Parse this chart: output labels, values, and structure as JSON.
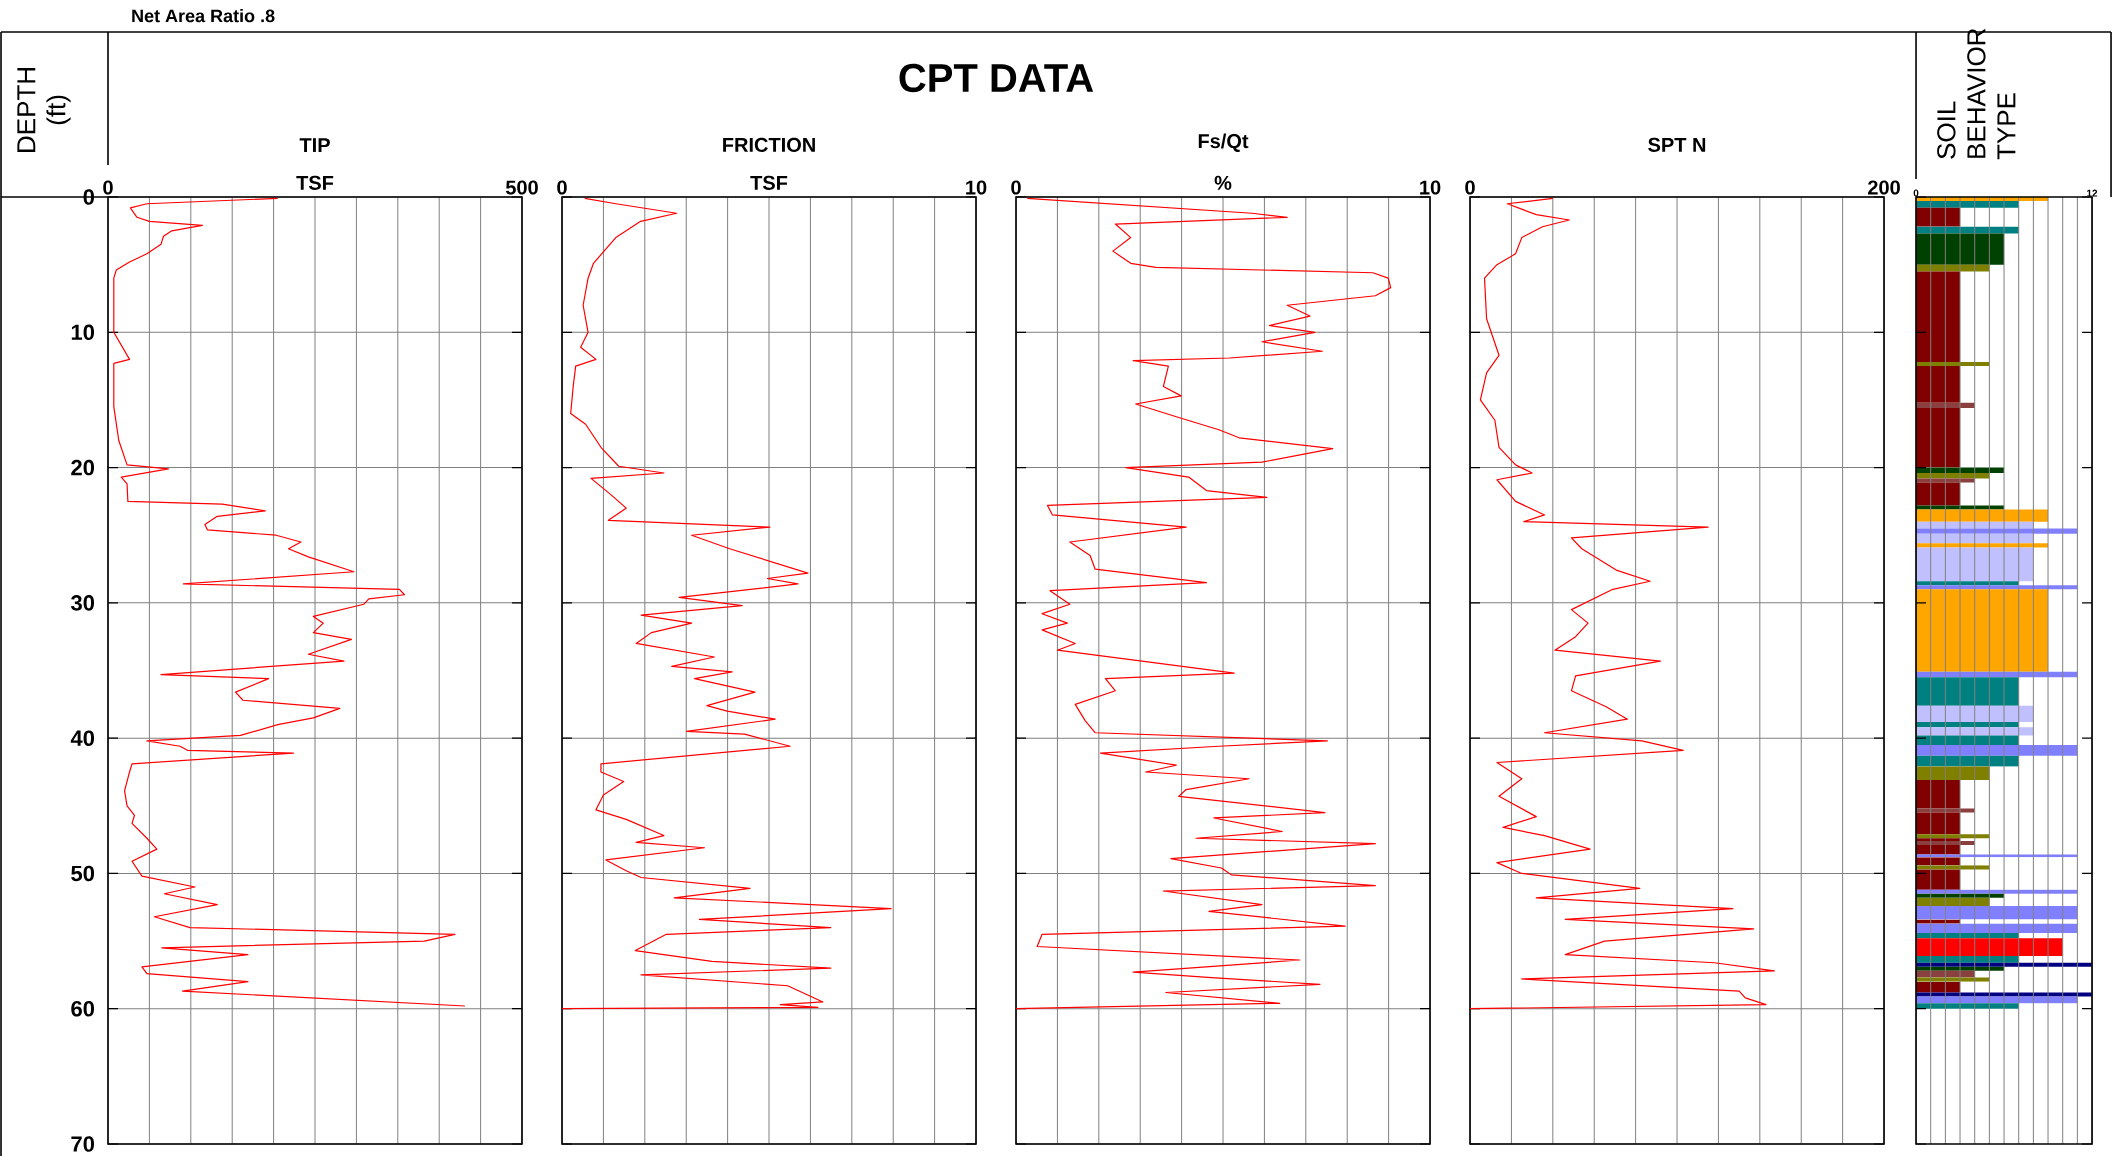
{
  "chart_data": [
    {
      "type": "line",
      "title": "TIP",
      "xlabel": "TSF",
      "ylabel": "DEPTH (ft)",
      "annotations": [
        "CPT DATA",
        "Net Area Ratio .8"
      ],
      "xlim": [
        0,
        500
      ],
      "xticks": [
        0,
        {
          "value": 50,
          "label": null
        },
        {
          "value": 100,
          "label": null
        },
        {
          "value": 150,
          "label": null
        },
        {
          "value": 200,
          "label": null
        },
        {
          "value": 250,
          "label": null
        },
        {
          "value": 300,
          "label": null
        },
        {
          "value": 350,
          "label": null
        },
        {
          "value": 400,
          "label": null
        },
        {
          "value": 450,
          "label": null
        },
        500
      ],
      "ylim": [
        70,
        0
      ],
      "yticks": [
        0,
        10,
        20,
        30,
        40,
        50,
        60,
        70
      ],
      "grid": true,
      "series": [
        {
          "color": "#ff0000",
          "x": [
            205,
            47,
            27,
            35,
            50,
            114,
            77,
            67,
            64,
            47,
            26,
            10,
            7,
            7,
            26,
            7,
            7,
            13,
            23,
            73,
            16,
            23,
            24,
            138,
            190,
            132,
            117,
            120,
            203,
            233,
            218,
            242,
            297,
            91,
            352,
            358,
            315,
            309,
            248,
            260,
            248,
            294,
            242,
            285,
            64,
            194,
            154,
            163,
            280,
            248,
            205,
            160,
            47,
            87,
            96,
            224,
            29,
            26,
            20,
            23,
            32,
            29,
            47,
            59,
            29,
            41,
            105,
            68,
            132,
            56,
            99,
            419,
            382,
            65,
            169,
            41,
            47,
            169,
            90,
            431
          ],
          "values": [
            0.1,
            0.5,
            0.8,
            1.5,
            1.8,
            2.1,
            2.5,
            2.9,
            3.5,
            4.2,
            4.8,
            5.4,
            6,
            10,
            12,
            12.3,
            15.5,
            18,
            19.8,
            20.1,
            20.7,
            21.2,
            22.5,
            22.7,
            23.2,
            23.6,
            24.2,
            24.6,
            25.0,
            25.5,
            26.0,
            26.6,
            27.7,
            28.6,
            29.0,
            29.4,
            29.7,
            30.1,
            31.0,
            31.5,
            32.2,
            32.7,
            33.8,
            34.3,
            35.3,
            35.6,
            36.6,
            37.2,
            37.8,
            38.5,
            39.0,
            39.8,
            40.2,
            40.6,
            40.9,
            41.1,
            41.9,
            42.5,
            43.9,
            45.0,
            45.7,
            46.3,
            47.4,
            48.2,
            49.1,
            50.2,
            51.0,
            51.5,
            52.3,
            53.2,
            54.0,
            54.5,
            55.0,
            55.5,
            56.0,
            56.9,
            57.4,
            58.0,
            58.7,
            59.8
          ]
        }
      ]
    },
    {
      "type": "line",
      "title": "FRICTION",
      "xlabel": "TSF",
      "xlim": [
        0,
        10
      ],
      "xticks": [
        0,
        {
          "value": 1,
          "label": null
        },
        {
          "value": 2,
          "label": null
        },
        {
          "value": 3,
          "label": null
        },
        {
          "value": 4,
          "label": null
        },
        {
          "value": 5,
          "label": null
        },
        {
          "value": 6,
          "label": null
        },
        {
          "value": 7,
          "label": null
        },
        {
          "value": 8,
          "label": null
        },
        {
          "value": 9,
          "label": null
        },
        10
      ],
      "ylim": [
        70,
        0
      ],
      "yticks": [
        0,
        10,
        20,
        30,
        40,
        50,
        60,
        70
      ],
      "grid": true,
      "tick_labels": "x",
      "series": [
        {
          "color": "#ff0000",
          "x": [
            0.55,
            1.3,
            2.77,
            1.9,
            1.3,
            0.76,
            0.63,
            0.51,
            0.63,
            0.45,
            0.82,
            0.33,
            0.27,
            0.21,
            0.57,
            0.94,
            1.37,
            2.46,
            0.7,
            1.18,
            1.55,
            1.12,
            5.02,
            3.13,
            4.05,
            5.94,
            4.96,
            5.7,
            2.83,
            4.35,
            1.91,
            3.13,
            2.16,
            1.79,
            3.68,
            2.65,
            4.11,
            3.2,
            4.66,
            3.5,
            3.99,
            5.15,
            3.01,
            4.41,
            5.51,
            0.94,
            0.94,
            1.49,
            1.0,
            0.82,
            1.55,
            2.46,
            1.79,
            3.44,
            1.06,
            1.55,
            1.91,
            4.54,
            2.71,
            7.95,
            3.32,
            6.49,
            2.52,
            1.77,
            3.62,
            6.49,
            1.91,
            5.45,
            6.3,
            5.27,
            6.18,
            0.0
          ],
          "values": [
            0.1,
            0.5,
            1.2,
            1.8,
            3.0,
            4.9,
            6.0,
            8.0,
            10.0,
            11.1,
            12.0,
            12.5,
            14.0,
            16.0,
            16.8,
            18.5,
            19.9,
            20.4,
            20.8,
            22.0,
            23.0,
            23.9,
            24.4,
            25.0,
            26.0,
            27.8,
            28.2,
            28.6,
            29.6,
            30.2,
            30.9,
            31.5,
            32.2,
            33.0,
            34.0,
            34.7,
            35.1,
            35.6,
            36.6,
            37.6,
            38.0,
            38.6,
            39.5,
            39.7,
            40.6,
            41.9,
            42.5,
            43.2,
            44.2,
            45.3,
            46.0,
            47.2,
            47.7,
            48.1,
            49.0,
            49.8,
            50.3,
            51.1,
            51.8,
            52.6,
            53.4,
            54.0,
            54.5,
            55.7,
            56.5,
            57.0,
            57.5,
            58.3,
            59.5,
            59.7,
            59.9,
            60.0
          ]
        }
      ]
    },
    {
      "type": "line",
      "title": "Fs/Qt",
      "xlabel": "%",
      "xlim": [
        0,
        10
      ],
      "xticks": [
        0,
        {
          "value": 1,
          "label": null
        },
        {
          "value": 2,
          "label": null
        },
        {
          "value": 3,
          "label": null
        },
        {
          "value": 4,
          "label": null
        },
        {
          "value": 5,
          "label": null
        },
        {
          "value": 6,
          "label": null
        },
        {
          "value": 7,
          "label": null
        },
        {
          "value": 8,
          "label": null
        },
        {
          "value": 9,
          "label": null
        },
        10
      ],
      "ylim": [
        70,
        0
      ],
      "yticks": [
        0,
        10,
        20,
        30,
        40,
        50,
        60,
        70
      ],
      "grid": true,
      "tick_labels": "x",
      "series": [
        {
          "color": "#ff0000",
          "x": [
            0.27,
            5.7,
            6.55,
            2.4,
            2.77,
            2.34,
            2.77,
            3.38,
            8.62,
            8.99,
            9.05,
            8.68,
            6.55,
            7.1,
            6.12,
            7.22,
            5.94,
            7.4,
            5.15,
            2.83,
            3.68,
            3.56,
            3.99,
            2.89,
            3.93,
            4.9,
            5.39,
            7.65,
            5.94,
            2.65,
            4.17,
            4.6,
            6.06,
            0.76,
            0.88,
            4.11,
            1.3,
            1.79,
            1.91,
            4.6,
            0.82,
            1.3,
            0.63,
            1.24,
            0.63,
            1.43,
            1.0,
            5.27,
            2.16,
            2.4,
            1.43,
            1.67,
            1.91,
            7.52,
            4.9,
            2.04,
            3.87,
            3.13,
            5.63,
            4.11,
            3.93,
            7.46,
            4.78,
            6.43,
            4.35,
            8.68,
            3.74,
            4.96,
            5.2,
            8.68,
            3.56,
            5.94,
            4.66,
            7.95,
            0.63,
            0.51,
            6.85,
            2.83,
            4.72,
            7.34,
            3.62,
            6.37,
            0.0
          ],
          "values": [
            0.1,
            1.2,
            1.5,
            2.0,
            3.0,
            4.0,
            4.9,
            5.2,
            5.6,
            6.0,
            6.7,
            7.3,
            8.0,
            8.8,
            9.5,
            10.0,
            10.7,
            11.4,
            11.9,
            12.1,
            12.5,
            14.0,
            14.7,
            15.3,
            16.3,
            17.2,
            17.8,
            18.6,
            19.6,
            20.0,
            20.7,
            21.7,
            22.2,
            22.8,
            23.5,
            24.4,
            25.5,
            26.5,
            27.5,
            28.5,
            29.1,
            30.1,
            30.8,
            31.5,
            32.0,
            33.0,
            33.5,
            35.2,
            35.6,
            36.5,
            37.5,
            38.7,
            39.6,
            40.2,
            40.6,
            41.1,
            42.0,
            42.5,
            43.0,
            43.8,
            44.3,
            45.5,
            45.9,
            46.9,
            47.4,
            47.8,
            48.9,
            49.6,
            50.1,
            50.9,
            51.3,
            52.3,
            52.8,
            53.9,
            54.5,
            55.4,
            56.4,
            57.3,
            57.7,
            58.2,
            58.8,
            59.6,
            60.0
          ]
        }
      ]
    },
    {
      "type": "line",
      "title": "SPT N",
      "xlim": [
        0,
        200
      ],
      "xticks": [
        0,
        {
          "value": 20,
          "label": null
        },
        {
          "value": 40,
          "label": null
        },
        {
          "value": 60,
          "label": null
        },
        {
          "value": 80,
          "label": null
        },
        {
          "value": 100,
          "label": null
        },
        {
          "value": 120,
          "label": null
        },
        {
          "value": 140,
          "label": null
        },
        {
          "value": 160,
          "label": null
        },
        {
          "value": 180,
          "label": null
        },
        200
      ],
      "ylim": [
        70,
        0
      ],
      "yticks": [
        0,
        10,
        20,
        30,
        40,
        50,
        60,
        70
      ],
      "grid": true,
      "tick_labels": "x",
      "series": [
        {
          "color": "#ff0000",
          "x": [
            40,
            18,
            32,
            48,
            35,
            25,
            22,
            13,
            7,
            8,
            14,
            8,
            5,
            12,
            14,
            22,
            30,
            13,
            22,
            36,
            26,
            115,
            49,
            54,
            71,
            87,
            69,
            49,
            57,
            51,
            41,
            92,
            51,
            49,
            66,
            76,
            36,
            83,
            103,
            13,
            25,
            14,
            32,
            16,
            36,
            58,
            13,
            25,
            82,
            32,
            127,
            46,
            137,
            65,
            46,
            118,
            147,
            25,
            130,
            133,
            143,
            0
          ],
          "values": [
            0.1,
            0.5,
            1.3,
            1.7,
            2.2,
            3.0,
            4.2,
            5.0,
            6.0,
            9.0,
            11.7,
            13.0,
            15.0,
            16.5,
            18.5,
            19.8,
            20.4,
            20.9,
            22.5,
            23.5,
            24.0,
            24.4,
            25.2,
            26.0,
            27.6,
            28.4,
            29.0,
            30.5,
            31.5,
            32.5,
            33.5,
            34.3,
            35.4,
            36.5,
            37.7,
            38.6,
            39.6,
            40.2,
            40.9,
            41.8,
            43.0,
            44.3,
            45.8,
            46.6,
            47.2,
            48.2,
            49.2,
            50.0,
            51.1,
            51.8,
            52.6,
            53.4,
            54.1,
            55.0,
            56.0,
            56.6,
            57.2,
            57.8,
            58.7,
            59.2,
            59.7,
            60.0
          ]
        }
      ]
    },
    {
      "type": "bar",
      "orientation": "horizontal",
      "title": "SOIL BEHAVIOR TYPE",
      "xlim": [
        0,
        12
      ],
      "xticks": [
        0,
        {
          "value": 1,
          "label": null
        },
        {
          "value": 2,
          "label": null
        },
        {
          "value": 3,
          "label": null
        },
        {
          "value": 4,
          "label": null
        },
        {
          "value": 5,
          "label": null
        },
        {
          "value": 6,
          "label": null
        },
        {
          "value": 7,
          "label": null
        },
        {
          "value": 8,
          "label": null
        },
        {
          "value": 9,
          "label": null
        },
        {
          "value": 10,
          "label": null
        },
        {
          "value": 11,
          "label": null
        },
        12
      ],
      "ylim": [
        70,
        0
      ],
      "yticks": [
        0,
        10,
        20,
        30,
        40,
        50,
        60,
        70
      ],
      "grid": "x",
      "tick_labels": "x",
      "x": [
        0.15,
        0.55,
        1.5,
        2.45,
        3.85,
        5.25,
        8.85,
        12.35,
        13.85,
        15.4,
        17.8,
        20.2,
        20.6,
        20.95,
        21.95,
        22.95,
        23.55,
        24.25,
        24.7,
        25.25,
        25.75,
        27.15,
        28.55,
        28.85,
        32.05,
        35.3,
        36.55,
        38.2,
        39.0,
        39.5,
        40.15,
        40.9,
        41.7,
        42.6,
        44.15,
        45.35,
        46.3,
        47.25,
        47.5,
        47.75,
        48.25,
        48.7,
        49.1,
        49.55,
        50.45,
        51.35,
        51.65,
        52.1,
        52.9,
        53.55,
        54.05,
        54.6,
        55.45,
        56.35,
        56.75,
        57.05,
        57.45,
        57.85,
        58.4,
        58.95,
        59.35,
        59.8
      ],
      "values": [
        9,
        7,
        3,
        7,
        6,
        5,
        3,
        5,
        3,
        4,
        3,
        6,
        5,
        4,
        3,
        6,
        9,
        8,
        11,
        8,
        9,
        8,
        7,
        11,
        9,
        11,
        7,
        8,
        7,
        8,
        7,
        11,
        7,
        5,
        3,
        4,
        3,
        5,
        3,
        4,
        3,
        11,
        3,
        5,
        3,
        11,
        6,
        5,
        11,
        3,
        11,
        7,
        10,
        7,
        12,
        6,
        4,
        5,
        3,
        12,
        11,
        7
      ],
      "colors": [
        "#ffa500",
        "#008080",
        "#800000",
        "#008080",
        "#004000",
        "#808000",
        "#800000",
        "#808000",
        "#800000",
        "#8b4040",
        "#800000",
        "#004000",
        "#808000",
        "#8b4040",
        "#800000",
        "#004000",
        "#ffa500",
        "#c0c0ff",
        "#8080ff",
        "#c0c0ff",
        "#ffa500",
        "#c0c0ff",
        "#008080",
        "#8080ff",
        "#ffa500",
        "#8080ff",
        "#008080",
        "#c0c0ff",
        "#008080",
        "#c0c0ff",
        "#008080",
        "#8080ff",
        "#008080",
        "#808000",
        "#800000",
        "#8b4040",
        "#800000",
        "#808000",
        "#800000",
        "#8b4040",
        "#800000",
        "#8080ff",
        "#800000",
        "#808000",
        "#800000",
        "#8080ff",
        "#004000",
        "#808000",
        "#8080ff",
        "#800000",
        "#8080ff",
        "#008080",
        "#ff0000",
        "#008080",
        "#000080",
        "#004000",
        "#8b4040",
        "#808000",
        "#800000",
        "#000080",
        "#8080ff",
        "#008080"
      ]
    }
  ]
}
